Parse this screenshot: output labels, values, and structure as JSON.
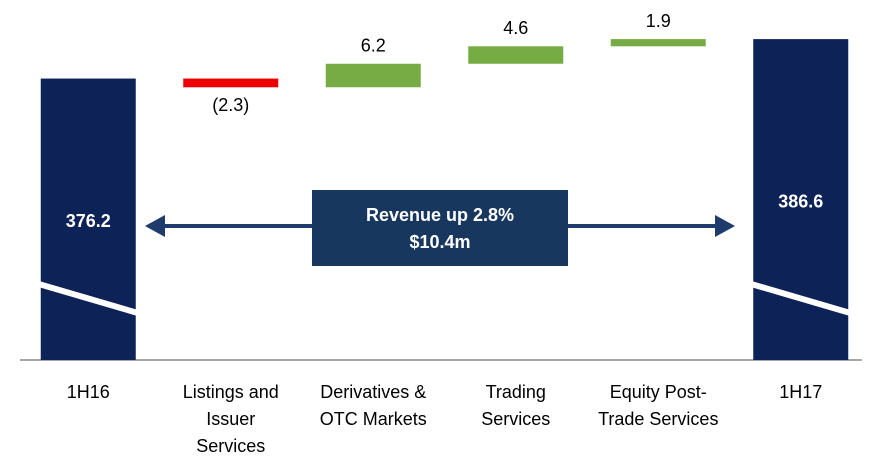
{
  "chart_data": {
    "type": "waterfall",
    "categories": [
      [
        "1H16"
      ],
      [
        "Listings and",
        "Issuer",
        "Services"
      ],
      [
        "Derivatives &",
        "OTC Markets"
      ],
      [
        "Trading",
        "Services"
      ],
      [
        "Equity Post-",
        "Trade Services"
      ],
      [
        "1H17"
      ]
    ],
    "values": [
      376.2,
      -2.3,
      6.2,
      4.6,
      1.9,
      386.6
    ],
    "value_labels": [
      "376.2",
      "(2.3)",
      "6.2",
      "4.6",
      "1.9",
      "386.6"
    ],
    "totals": [
      true,
      false,
      false,
      false,
      false,
      true
    ],
    "total_color": "#0d2257",
    "increase_color": "#77ac44",
    "decrease_color": "#ee0000",
    "ylim": [
      302,
      389
    ],
    "axis_break": true,
    "annotation": [
      "Revenue up 2.8%",
      "$10.4m"
    ]
  }
}
